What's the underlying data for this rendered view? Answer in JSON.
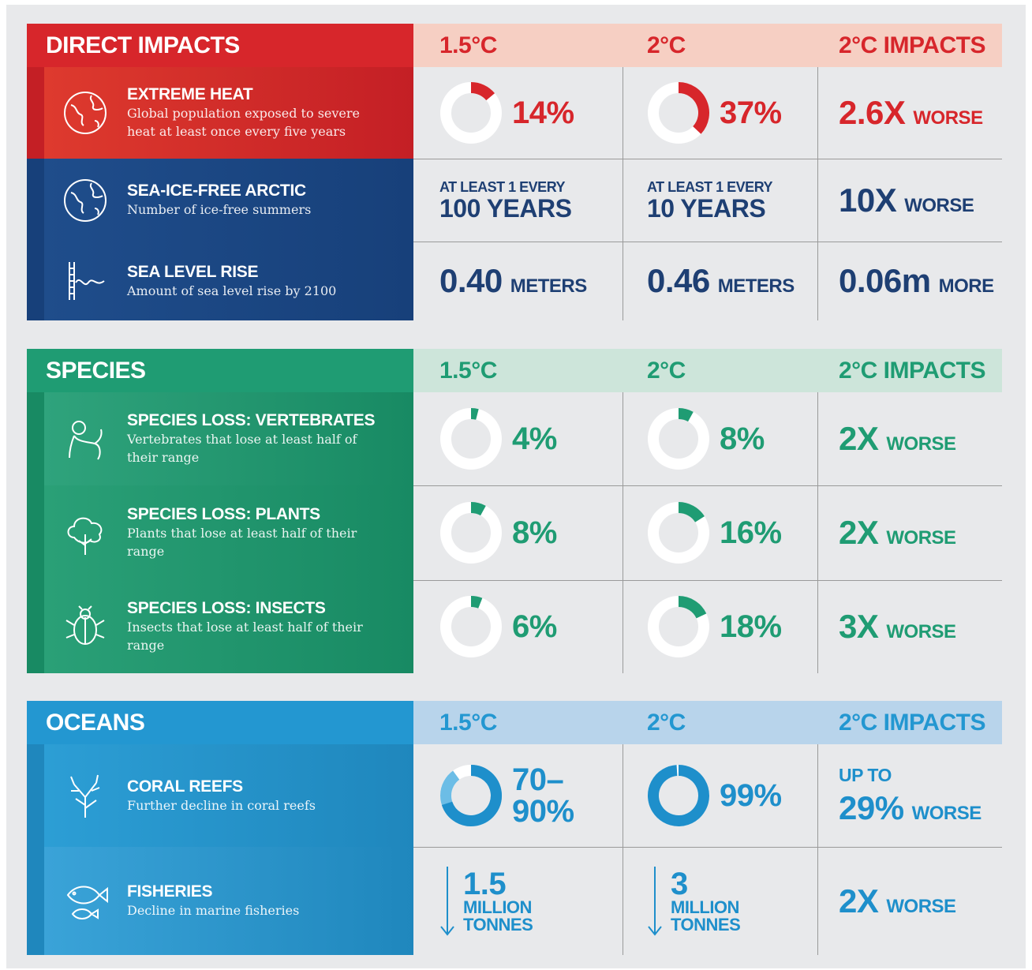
{
  "sections": [
    {
      "title": "DIRECT IMPACTS",
      "headers": [
        "1.5°C",
        "2°C",
        "2°C IMPACTS"
      ],
      "rows": [
        {
          "title": "EXTREME HEAT",
          "description": "Global population exposed to severe heat at least once every five years",
          "cells": [
            {
              "value": 14,
              "label": "14%"
            },
            {
              "value": 37,
              "label": "37%"
            },
            {
              "main": "2.6X",
              "suffix": "WORSE"
            }
          ]
        },
        {
          "title": "SEA-ICE-FREE ARCTIC",
          "description": "Number of ice-free summers",
          "cells": [
            {
              "prefix": "AT LEAST 1 EVERY",
              "main": "100 YEARS"
            },
            {
              "prefix": "AT LEAST 1 EVERY",
              "main": "10 YEARS"
            },
            {
              "main": "10X",
              "suffix": "WORSE"
            }
          ]
        },
        {
          "title": "SEA LEVEL RISE",
          "description": "Amount of sea level rise by 2100",
          "cells": [
            {
              "main": "0.40",
              "suffix": "METERS"
            },
            {
              "main": "0.46",
              "suffix": "METERS"
            },
            {
              "main": "0.06m",
              "suffix": "MORE"
            }
          ]
        }
      ]
    },
    {
      "title": "SPECIES",
      "headers": [
        "1.5°C",
        "2°C",
        "2°C IMPACTS"
      ],
      "rows": [
        {
          "title": "SPECIES LOSS: VERTEBRATES",
          "description": "Vertebrates that lose at least half of their range",
          "cells": [
            {
              "value": 4,
              "label": "4%"
            },
            {
              "value": 8,
              "label": "8%"
            },
            {
              "main": "2X",
              "suffix": "WORSE"
            }
          ]
        },
        {
          "title": "SPECIES LOSS: PLANTS",
          "description": "Plants that lose at least half of their range",
          "cells": [
            {
              "value": 8,
              "label": "8%"
            },
            {
              "value": 16,
              "label": "16%"
            },
            {
              "main": "2X",
              "suffix": "WORSE"
            }
          ]
        },
        {
          "title": "SPECIES LOSS: INSECTS",
          "description": "Insects that lose at least half of their range",
          "cells": [
            {
              "value": 6,
              "label": "6%"
            },
            {
              "value": 18,
              "label": "18%"
            },
            {
              "main": "3X",
              "suffix": "WORSE"
            }
          ]
        }
      ]
    },
    {
      "title": "OCEANS",
      "headers": [
        "1.5°C",
        "2°C",
        "2°C IMPACTS"
      ],
      "rows": [
        {
          "title": "CORAL REEFS",
          "description": "Further decline in coral reefs",
          "cells": [
            {
              "range": [
                70,
                90
              ],
              "label": "70–90%"
            },
            {
              "value": 99,
              "label": "99%"
            },
            {
              "prefix": "UP TO",
              "main": "29%",
              "suffix": "WORSE"
            }
          ]
        },
        {
          "title": "FISHERIES",
          "description": "Decline in marine fisheries",
          "cells": [
            {
              "main": "1.5",
              "unit": "MILLION TONNES"
            },
            {
              "main": "3",
              "unit": "MILLION TONNES"
            },
            {
              "main": "2X",
              "suffix": "WORSE"
            }
          ]
        }
      ]
    }
  ]
}
